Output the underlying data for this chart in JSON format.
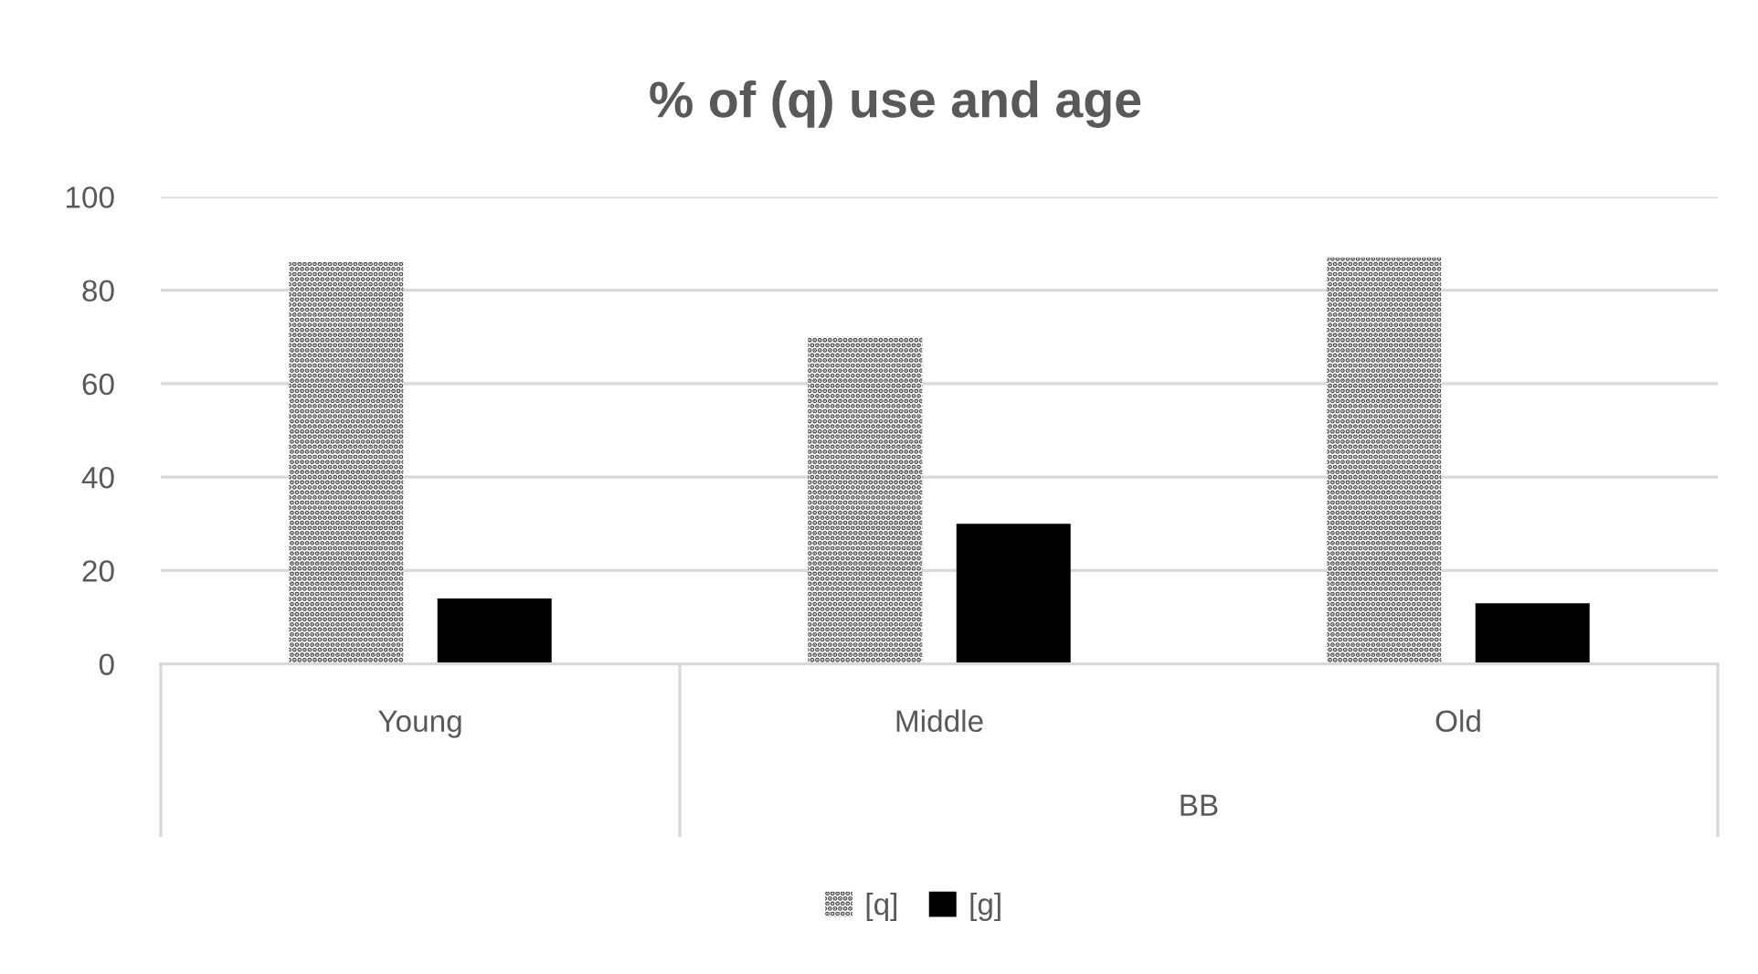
{
  "chart_data": {
    "type": "bar",
    "title": "% of (q) use and age",
    "categories": [
      "Young",
      "Middle",
      "Old"
    ],
    "series": [
      {
        "name": "[q]",
        "color": "#404040",
        "values": [
          86,
          70,
          87
        ]
      },
      {
        "name": "[ɡ]",
        "color": "#000000",
        "values": [
          14,
          30,
          13
        ]
      }
    ],
    "ylim": [
      0,
      100
    ],
    "yticks": [
      0,
      20,
      40,
      60,
      80,
      100
    ],
    "grid": "y",
    "legend": "bottom",
    "annotations": [
      "BB"
    ]
  }
}
